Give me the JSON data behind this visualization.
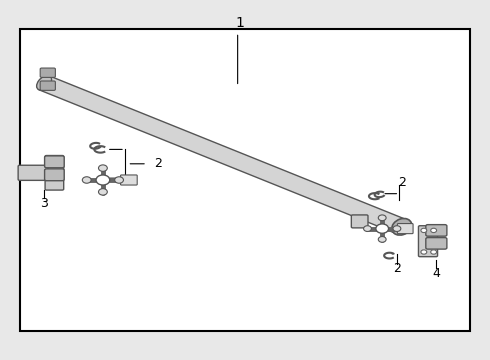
{
  "background_color": "#e8e8e8",
  "inner_bg_color": "#ffffff",
  "border_color": "#000000",
  "line_color": "#555555",
  "text_color": "#000000",
  "shaft_color": "#cccccc",
  "shaft_stroke": "#555555"
}
